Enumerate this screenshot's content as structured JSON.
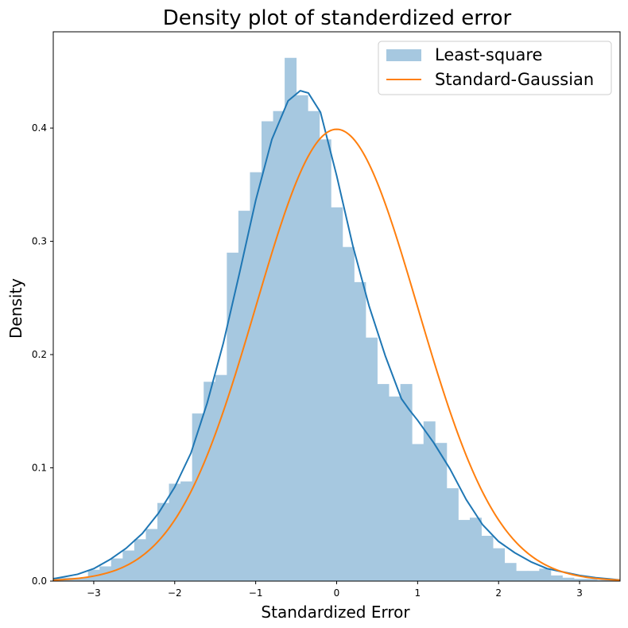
{
  "chart_data": {
    "type": "histogram",
    "title": "Density plot of standerdized error",
    "xlabel": "Standardized Error",
    "ylabel": "Density",
    "xlim": [
      -3.5,
      3.5
    ],
    "ylim": [
      0,
      0.485
    ],
    "xticks": [
      -3,
      -2,
      -1,
      0,
      1,
      2,
      3
    ],
    "xtick_labels": [
      "−3",
      "−2",
      "−1",
      "0",
      "1",
      "2",
      "3"
    ],
    "yticks": [
      0.0,
      0.1,
      0.2,
      0.3,
      0.4
    ],
    "ytick_labels": [
      "0.0",
      "0.1",
      "0.2",
      "0.3",
      "0.4"
    ],
    "grid": false,
    "legend_position": "top-right",
    "histogram": {
      "name": "Least-square",
      "color": "#a6c8e0",
      "bin_start": -3.5,
      "bin_width": 0.1429,
      "values": [
        0.003,
        0.003,
        0.003,
        0.01,
        0.013,
        0.02,
        0.027,
        0.037,
        0.046,
        0.069,
        0.086,
        0.088,
        0.148,
        0.176,
        0.182,
        0.29,
        0.327,
        0.361,
        0.406,
        0.415,
        0.462,
        0.429,
        0.415,
        0.39,
        0.33,
        0.295,
        0.264,
        0.215,
        0.174,
        0.163,
        0.174,
        0.121,
        0.141,
        0.122,
        0.082,
        0.054,
        0.056,
        0.04,
        0.029,
        0.016,
        0.009,
        0.009,
        0.011,
        0.005,
        0.003,
        0.002,
        0.002,
        0.001,
        0.001
      ]
    },
    "kde": {
      "name": "Least-square",
      "color": "#1f77b4",
      "x": [
        -3.5,
        -3.2,
        -3.0,
        -2.8,
        -2.6,
        -2.4,
        -2.2,
        -2.0,
        -1.8,
        -1.6,
        -1.4,
        -1.2,
        -1.0,
        -0.8,
        -0.6,
        -0.45,
        -0.35,
        -0.2,
        0.0,
        0.2,
        0.4,
        0.6,
        0.8,
        0.9,
        1.0,
        1.2,
        1.4,
        1.6,
        1.8,
        2.0,
        2.2,
        2.4,
        2.6,
        2.8,
        3.0,
        3.2,
        3.5
      ],
      "y": [
        0.002,
        0.006,
        0.011,
        0.019,
        0.029,
        0.042,
        0.06,
        0.083,
        0.113,
        0.157,
        0.21,
        0.272,
        0.336,
        0.39,
        0.424,
        0.433,
        0.431,
        0.414,
        0.358,
        0.296,
        0.243,
        0.199,
        0.161,
        0.151,
        0.142,
        0.122,
        0.099,
        0.072,
        0.05,
        0.035,
        0.025,
        0.017,
        0.011,
        0.008,
        0.005,
        0.003,
        0.001
      ]
    },
    "gaussian": {
      "name": "Standard-Gaussian",
      "color": "#ff7f0e",
      "mean": 0,
      "std": 1
    }
  }
}
